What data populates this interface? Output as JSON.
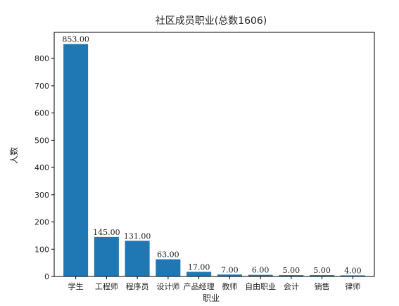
{
  "chart_data": {
    "type": "bar",
    "title": "社区成员职业(总数1606)",
    "xlabel": "职业",
    "ylabel": "人数",
    "categories": [
      "学生",
      "工程师",
      "程序员",
      "设计师",
      "产品经理",
      "教师",
      "自由职业",
      "会计",
      "销售",
      "律师"
    ],
    "values": [
      853,
      145,
      131,
      63,
      17,
      7,
      6,
      5,
      5,
      4
    ],
    "data_labels": [
      "853.00",
      "145.00",
      "131.00",
      "63.00",
      "17.00",
      "7.00",
      "6.00",
      "5.00",
      "5.00",
      "4.00"
    ],
    "ylim": [
      0,
      896
    ],
    "yticks": [
      0,
      100,
      200,
      300,
      400,
      500,
      600,
      700,
      800
    ],
    "grid": false,
    "legend": "none",
    "bar_color": "#1f77b4"
  }
}
